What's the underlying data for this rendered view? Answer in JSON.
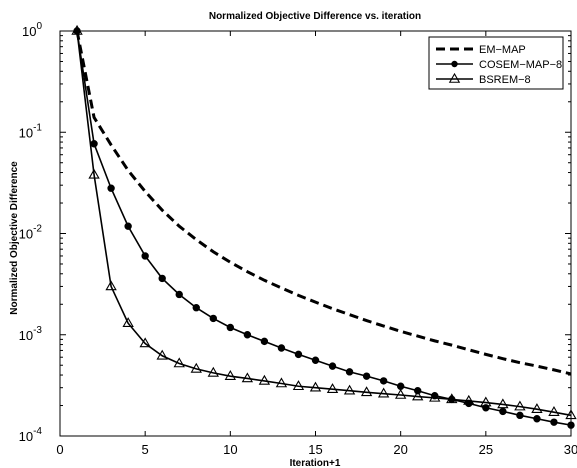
{
  "chart_data": {
    "type": "line",
    "title": "Normalized Objective Difference vs. iteration",
    "xlabel": "Iteration+1",
    "ylabel": "Normalized Objective Difference",
    "xlim": [
      0,
      30
    ],
    "ylim": [
      0.0001,
      1
    ],
    "yscale": "log",
    "grid": false,
    "legend_position": "top-right",
    "xticks": [
      0,
      5,
      10,
      15,
      20,
      25,
      30
    ],
    "yticks": [
      {
        "value": 1,
        "base": "10",
        "exp": "0"
      },
      {
        "value": 0.1,
        "base": "10",
        "exp": "-1"
      },
      {
        "value": 0.01,
        "base": "10",
        "exp": "-2"
      },
      {
        "value": 0.001,
        "base": "10",
        "exp": "-3"
      },
      {
        "value": 0.0001,
        "base": "10",
        "exp": "-4"
      }
    ],
    "x": [
      1,
      2,
      3,
      4,
      5,
      6,
      7,
      8,
      9,
      10,
      11,
      12,
      13,
      14,
      15,
      16,
      17,
      18,
      19,
      20,
      21,
      22,
      23,
      24,
      25,
      26,
      27,
      28,
      29,
      30
    ],
    "series": [
      {
        "name": "EM−MAP",
        "style": "dashed",
        "marker": "none",
        "values": [
          1,
          0.14,
          0.075,
          0.042,
          0.026,
          0.017,
          0.0118,
          0.0087,
          0.0066,
          0.0052,
          0.0042,
          0.00345,
          0.0029,
          0.00245,
          0.0021,
          0.00181,
          0.00158,
          0.00138,
          0.00122,
          0.00108,
          0.00097,
          0.00087,
          0.00079,
          0.00071,
          0.00064,
          0.00058,
          0.00053,
          0.00049,
          0.00045,
          0.00041
        ]
      },
      {
        "name": "COSEM−MAP−8",
        "style": "solid",
        "marker": "circle",
        "values": [
          1,
          0.077,
          0.028,
          0.0118,
          0.006,
          0.0036,
          0.0025,
          0.00185,
          0.00145,
          0.00118,
          0.001,
          0.00086,
          0.00074,
          0.00064,
          0.00056,
          0.00049,
          0.00043,
          0.00039,
          0.00035,
          0.00031,
          0.00028,
          0.00025,
          0.00023,
          0.00021,
          0.00019,
          0.000175,
          0.00016,
          0.000148,
          0.000137,
          0.000128
        ]
      },
      {
        "name": "BSREM−8",
        "style": "solid",
        "marker": "triangle",
        "values": [
          1,
          0.038,
          0.003,
          0.0013,
          0.00082,
          0.00062,
          0.00052,
          0.00046,
          0.00042,
          0.00039,
          0.00037,
          0.00035,
          0.00033,
          0.00031,
          0.0003,
          0.00029,
          0.00028,
          0.00027,
          0.000262,
          0.000254,
          0.000245,
          0.000238,
          0.00023,
          0.000222,
          0.000214,
          0.000205,
          0.000195,
          0.000184,
          0.000172,
          0.00016
        ]
      }
    ]
  }
}
